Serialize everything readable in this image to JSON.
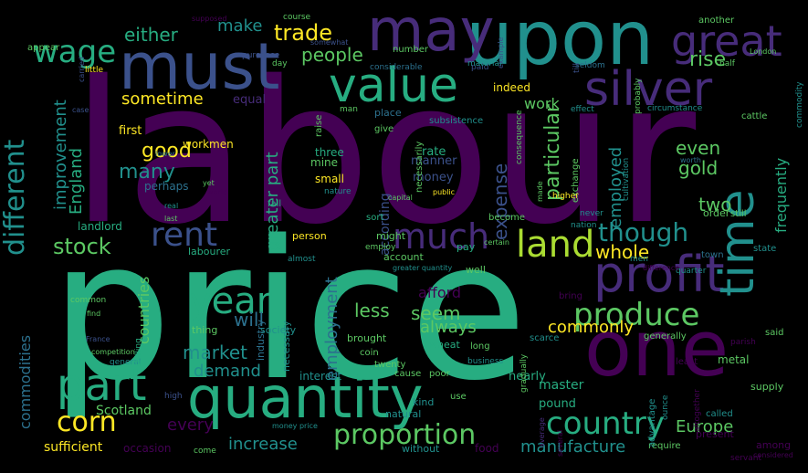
{
  "colors": {
    "background": "#000000",
    "deep_purple": "#440154",
    "purple": "#472c7a",
    "indigo": "#3b518b",
    "blue": "#2c718e",
    "teal": "#21908d",
    "sea_green": "#27ad81",
    "green": "#5cc863",
    "lime": "#aadc32",
    "yellow": "#fde725"
  },
  "words": [
    "labour",
    "price",
    "quantity",
    "upon",
    "one",
    "must",
    "value",
    "may",
    "silver",
    "profit",
    "time",
    "part",
    "great",
    "country",
    "rent",
    "year",
    "land",
    "much",
    "wage",
    "different",
    "produce",
    "proportion",
    "corn",
    "stock",
    "though",
    "trade",
    "either",
    "make",
    "people",
    "rise",
    "sometime",
    "good",
    "many",
    "improvement",
    "England",
    "particular",
    "expense",
    "employed",
    "gold",
    "even",
    "two",
    "whole",
    "frequently",
    "market",
    "demand",
    "countries",
    "greater part",
    "will",
    "seem",
    "always",
    "commonly",
    "afford",
    "less",
    "employment",
    "increase",
    "manufacture",
    "Europe",
    "every",
    "commodities",
    "Scotland",
    "sufficient",
    "occasion",
    "according",
    "money",
    "manner",
    "rate",
    "three",
    "mine",
    "small",
    "work",
    "indeed",
    "equal",
    "first",
    "workmen",
    "perhaps",
    "landlord",
    "labourer",
    "industry",
    "account",
    "pay",
    "well",
    "might",
    "person",
    "interest",
    "nearly",
    "master",
    "pound",
    "supply",
    "metal",
    "said",
    "state",
    "town",
    "order",
    "still",
    "cattle",
    "bring",
    "kind",
    "natural",
    "use",
    "cause",
    "poor",
    "food",
    "without",
    "require",
    "servant",
    "common",
    "find",
    "thing",
    "necessary",
    "society",
    "brought",
    "coin",
    "general",
    "long",
    "wheat",
    "twenty",
    "business",
    "lower",
    "yet",
    "world",
    "real",
    "last",
    "fall",
    "sort",
    "become",
    "nation",
    "quarter",
    "men",
    "difference",
    "shilling",
    "present",
    "among",
    "called",
    "considered",
    "another",
    "course",
    "supposed",
    "appear",
    "purchase",
    "day",
    "paid",
    "material",
    "half",
    "London",
    "seldom",
    "probably",
    "commodity",
    "effect",
    "circumstance",
    "exchange",
    "cultivation",
    "consequence",
    "public",
    "made",
    "nature",
    "capital",
    "certain",
    "employ",
    "almost",
    "greater quantity",
    "scarce",
    "gradually",
    "least",
    "advantage",
    "ounce",
    "altogether",
    "necessarily",
    "raise",
    "man",
    "case",
    "little",
    "subsistence",
    "place",
    "give",
    "number",
    "considerable",
    "somewhat",
    "several",
    "average",
    "never",
    "higher",
    "high",
    "competition",
    "France",
    "money price",
    "come",
    "parish",
    "worth",
    "carried",
    "example",
    "till",
    "generally"
  ]
}
